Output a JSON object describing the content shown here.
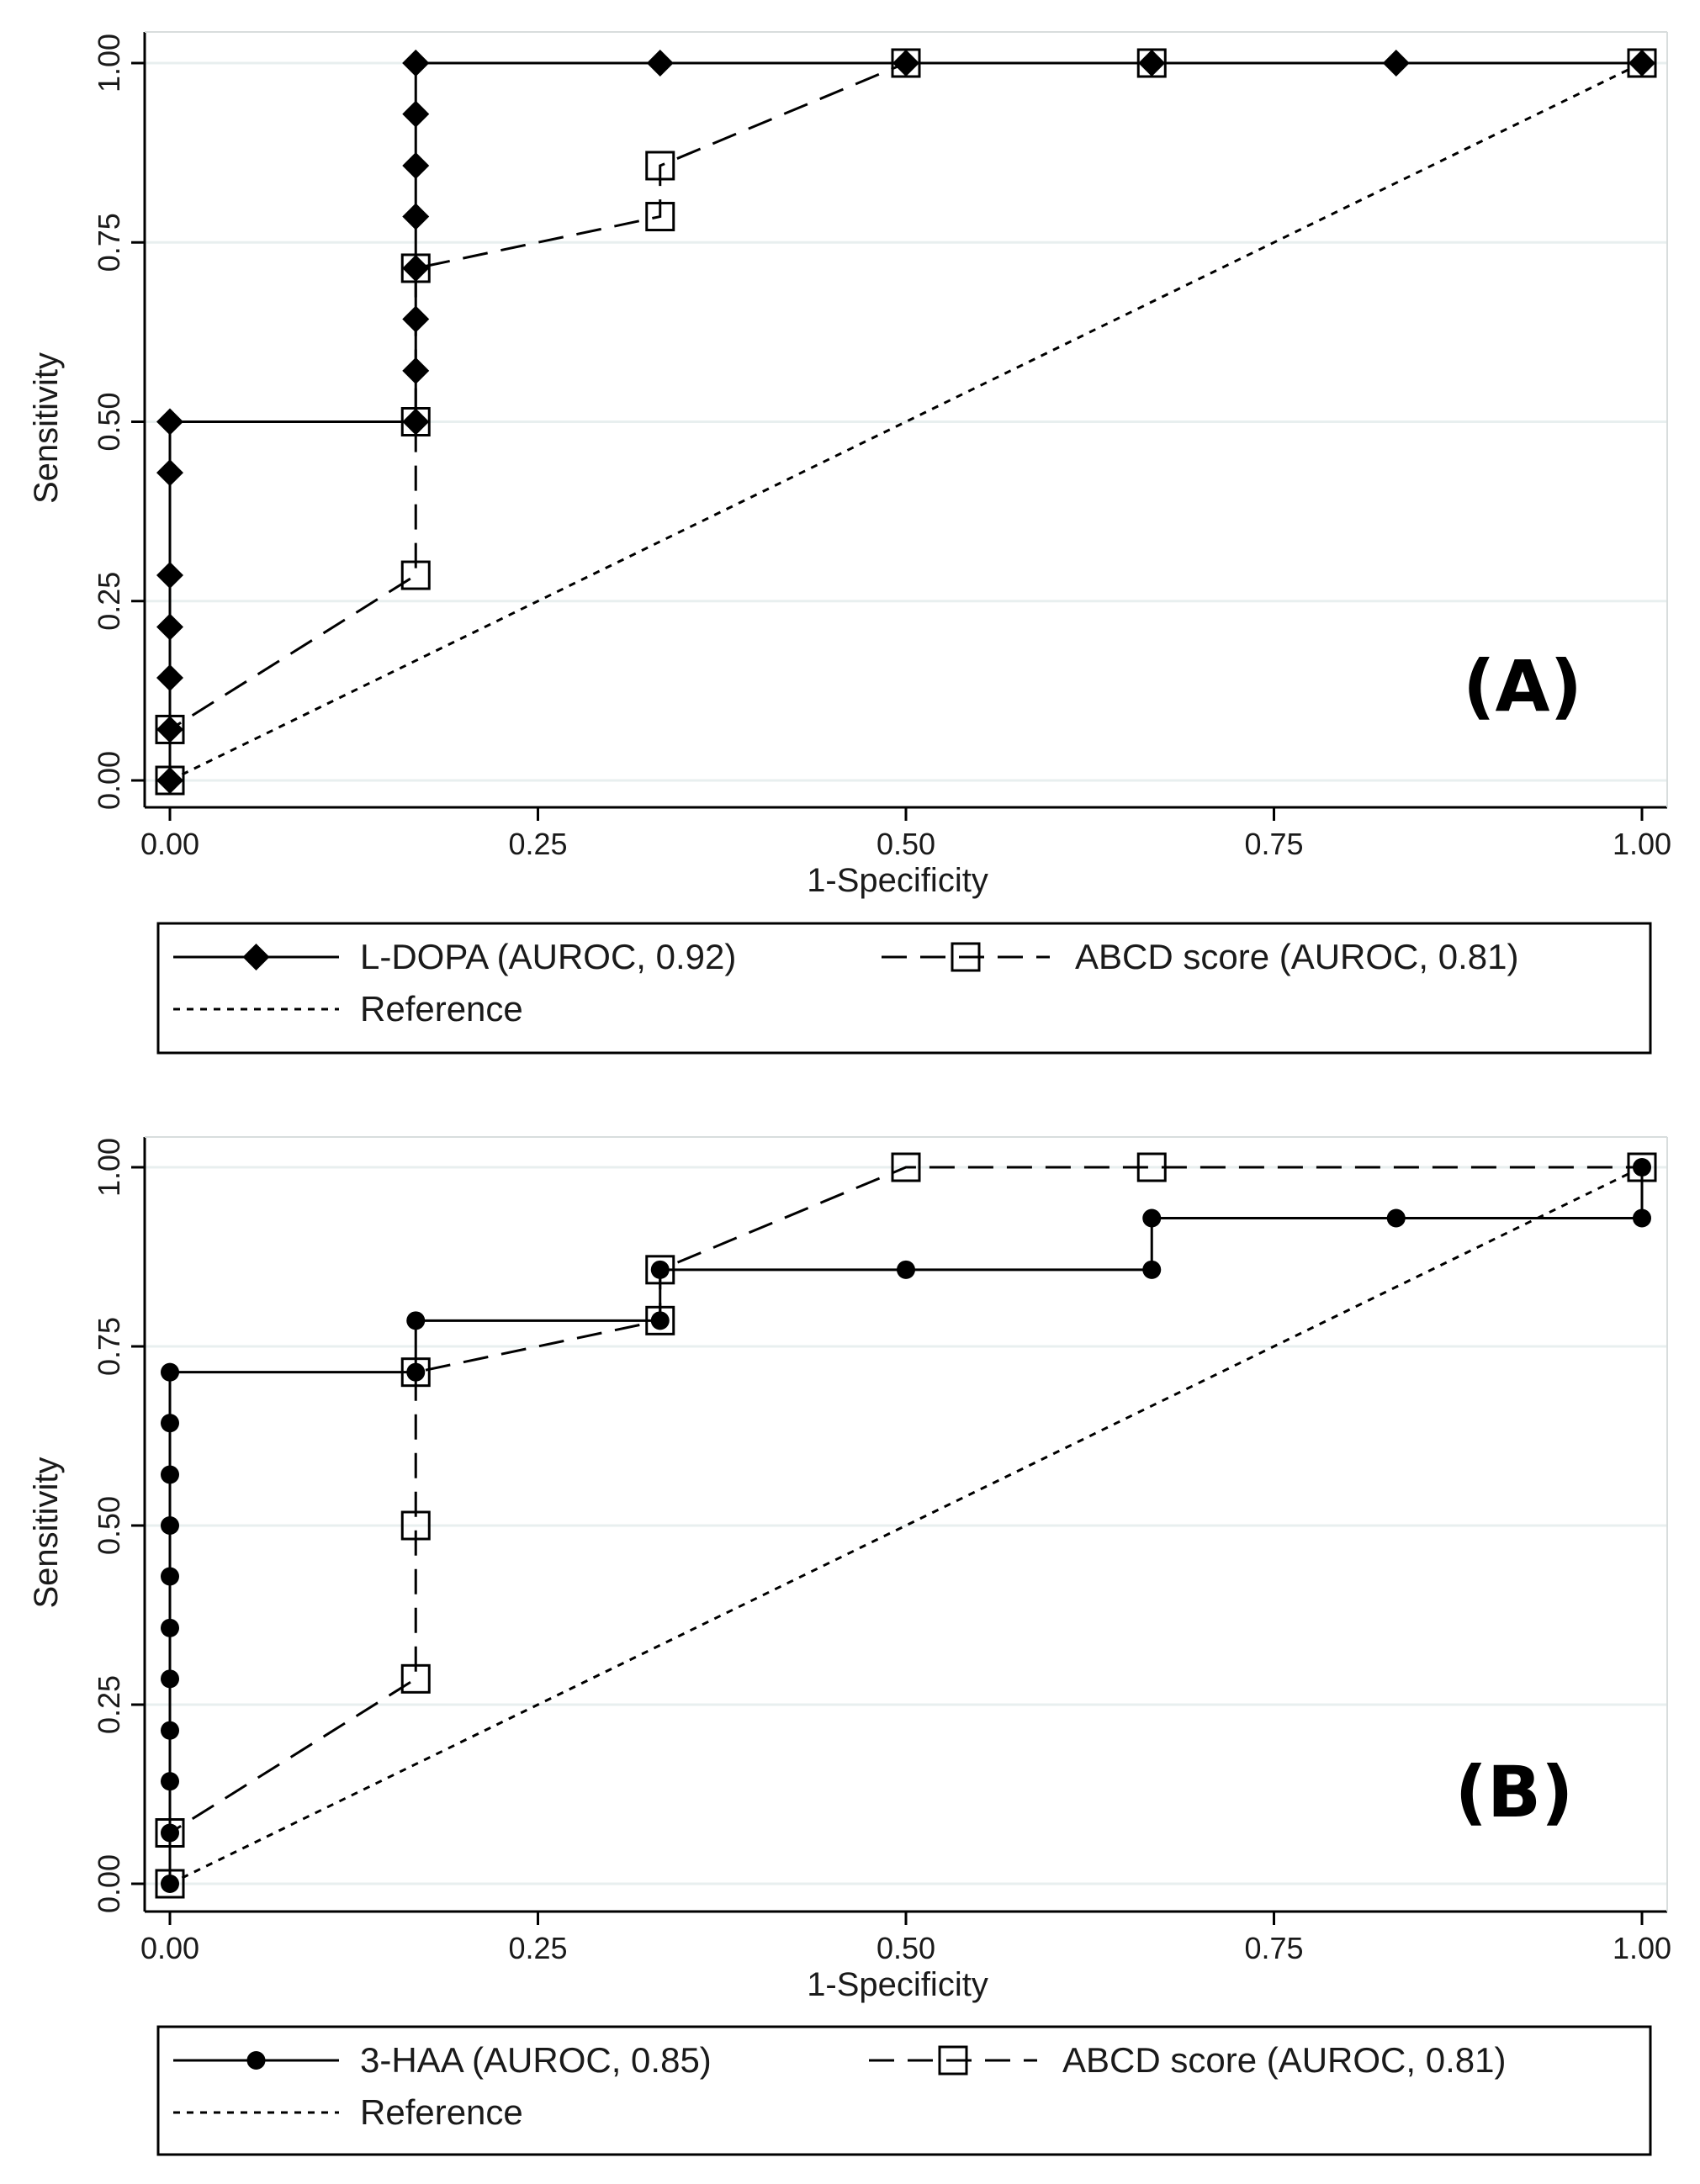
{
  "colors": {
    "grid": "#e8efef",
    "axis": "#000000",
    "line": "#000000",
    "marker_open_fill": "#ffffff"
  },
  "chart_data": [
    {
      "type": "line",
      "panel_label": "(A)",
      "xlabel": "1-Specificity",
      "ylabel": "Sensitivity",
      "xlim": [
        0,
        1
      ],
      "ylim": [
        0,
        1
      ],
      "xticks": [
        "0.00",
        "0.25",
        "0.50",
        "0.75",
        "1.00"
      ],
      "yticks": [
        "0.00",
        "0.25",
        "0.50",
        "0.75",
        "1.00"
      ],
      "grid": true,
      "legend_position": "bottom",
      "series": [
        {
          "name": "L-DOPA (AUROC, 0.92)",
          "style": "solid",
          "marker": "diamond-filled",
          "x": [
            0,
            0,
            0,
            0,
            0,
            0,
            0,
            0.167,
            0.167,
            0.167,
            0.167,
            0.167,
            0.167,
            0.167,
            0.167,
            0.167,
            0.333,
            0.5,
            0.667,
            0.833,
            1.0
          ],
          "y": [
            0,
            0.071,
            0.143,
            0.214,
            0.286,
            0.429,
            0.5,
            0.5,
            0.571,
            0.643,
            0.714,
            0.786,
            0.857,
            0.929,
            1.0,
            1.0,
            1.0,
            1.0,
            1.0,
            1.0,
            1.0
          ]
        },
        {
          "name": "ABCD score (AUROC, 0.81)",
          "style": "dashed",
          "marker": "square-open",
          "x": [
            0,
            0,
            0.167,
            0.167,
            0.167,
            0.333,
            0.333,
            0.5,
            0.667,
            1.0
          ],
          "y": [
            0,
            0.071,
            0.286,
            0.5,
            0.714,
            0.786,
            0.857,
            1.0,
            1.0,
            1.0
          ]
        },
        {
          "name": "Reference",
          "style": "dotted",
          "marker": "none",
          "x": [
            0,
            1
          ],
          "y": [
            0,
            1
          ]
        }
      ]
    },
    {
      "type": "line",
      "panel_label": "(B)",
      "xlabel": "1-Specificity",
      "ylabel": "Sensitivity",
      "xlim": [
        0,
        1
      ],
      "ylim": [
        0,
        1
      ],
      "xticks": [
        "0.00",
        "0.25",
        "0.50",
        "0.75",
        "1.00"
      ],
      "yticks": [
        "0.00",
        "0.25",
        "0.50",
        "0.75",
        "1.00"
      ],
      "grid": true,
      "legend_position": "bottom",
      "series": [
        {
          "name": "3-HAA (AUROC, 0.85)",
          "style": "solid",
          "marker": "circle-filled",
          "x": [
            0,
            0,
            0,
            0,
            0,
            0,
            0,
            0,
            0,
            0,
            0,
            0.167,
            0.167,
            0.333,
            0.333,
            0.5,
            0.667,
            0.667,
            0.833,
            1.0,
            1.0
          ],
          "y": [
            0,
            0.071,
            0.143,
            0.214,
            0.286,
            0.357,
            0.429,
            0.5,
            0.571,
            0.643,
            0.714,
            0.714,
            0.786,
            0.786,
            0.857,
            0.857,
            0.857,
            0.929,
            0.929,
            0.929,
            1.0
          ]
        },
        {
          "name": "ABCD score (AUROC, 0.81)",
          "style": "dashed",
          "marker": "square-open",
          "x": [
            0,
            0,
            0.167,
            0.167,
            0.167,
            0.333,
            0.333,
            0.5,
            0.667,
            1.0
          ],
          "y": [
            0,
            0.071,
            0.286,
            0.5,
            0.714,
            0.786,
            0.857,
            1.0,
            1.0,
            1.0
          ]
        },
        {
          "name": "Reference",
          "style": "dotted",
          "marker": "none",
          "x": [
            0,
            1
          ],
          "y": [
            0,
            1
          ]
        }
      ]
    }
  ]
}
